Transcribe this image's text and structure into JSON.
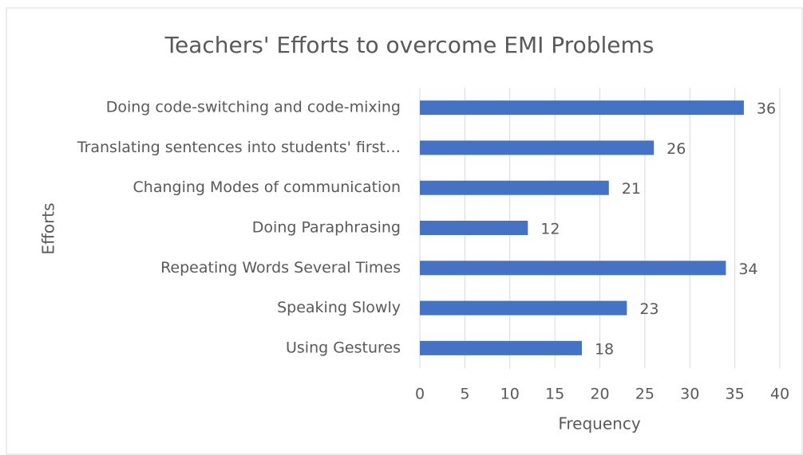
{
  "chart_data": {
    "type": "bar",
    "orientation": "horizontal",
    "title": "Teachers' Efforts to overcome EMI Problems",
    "x_label": "Frequency",
    "y_label": "Efforts",
    "categories": [
      "Doing code-switching and code-mixing",
      "Translating sentences into students' first…",
      "Changing Modes of communication",
      "Doing Paraphrasing",
      "Repeating Words Several Times",
      "Speaking Slowly",
      "Using Gestures"
    ],
    "values": [
      36,
      26,
      21,
      12,
      34,
      23,
      18
    ],
    "color": "#4472c4",
    "xlim": [
      0,
      40
    ],
    "xticks": [
      0,
      5,
      10,
      15,
      20,
      25,
      30,
      35,
      40
    ],
    "grid": true
  }
}
